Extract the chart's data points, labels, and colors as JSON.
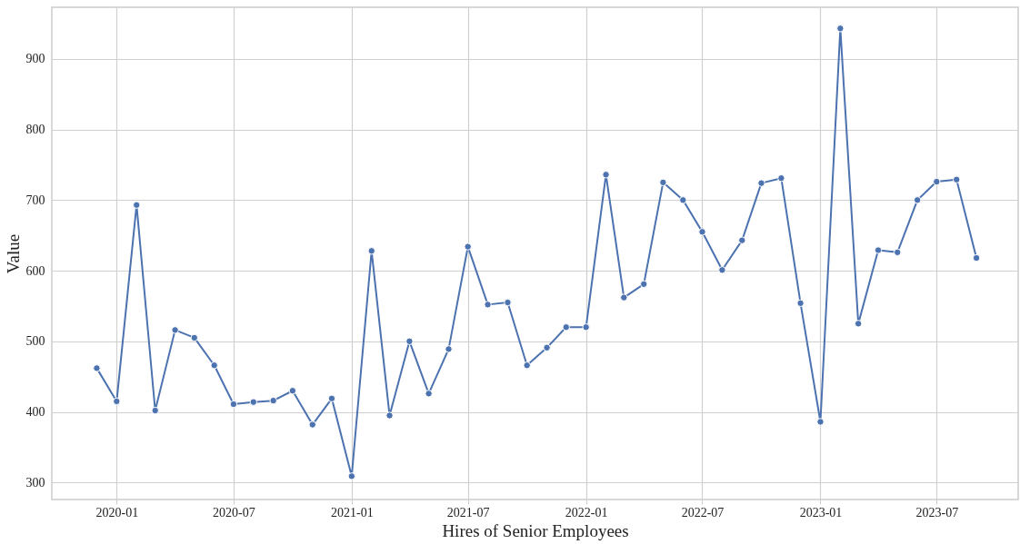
{
  "chart_data": {
    "type": "line",
    "xlabel": "Hires of Senior Employees",
    "ylabel": "Value",
    "x": [
      "2019-12",
      "2020-01",
      "2020-02",
      "2020-03",
      "2020-04",
      "2020-05",
      "2020-06",
      "2020-07",
      "2020-08",
      "2020-09",
      "2020-10",
      "2020-11",
      "2020-12",
      "2021-01",
      "2021-02",
      "2021-03",
      "2021-04",
      "2021-05",
      "2021-06",
      "2021-07",
      "2021-08",
      "2021-09",
      "2021-10",
      "2021-11",
      "2021-12",
      "2022-01",
      "2022-02",
      "2022-03",
      "2022-04",
      "2022-05",
      "2022-06",
      "2022-07",
      "2022-08",
      "2022-09",
      "2022-10",
      "2022-11",
      "2022-12",
      "2023-01",
      "2023-02",
      "2023-03",
      "2023-04",
      "2023-05",
      "2023-06",
      "2023-07",
      "2023-08",
      "2023-09"
    ],
    "series": [
      {
        "color": "#4c72b0",
        "values": [
          462,
          415,
          693,
          402,
          516,
          505,
          466,
          411,
          414,
          416,
          430,
          382,
          419,
          309,
          628,
          395,
          500,
          426,
          489,
          634,
          552,
          555,
          466,
          491,
          520,
          520,
          736,
          562,
          581,
          725,
          700,
          655,
          601,
          643,
          724,
          731,
          554,
          386,
          943,
          525,
          629,
          626,
          700,
          726,
          729,
          618
        ]
      }
    ],
    "xlim": [
      "2019-09-22",
      "2023-11-05"
    ],
    "xticks": [
      "2020-01",
      "2020-07",
      "2021-01",
      "2021-07",
      "2022-01",
      "2022-07",
      "2023-01",
      "2023-07"
    ],
    "ylim": [
      276,
      973
    ],
    "yticks": [
      300,
      400,
      500,
      600,
      700,
      800,
      900
    ],
    "grid": true,
    "marker": "circle",
    "line_style": "solid"
  }
}
